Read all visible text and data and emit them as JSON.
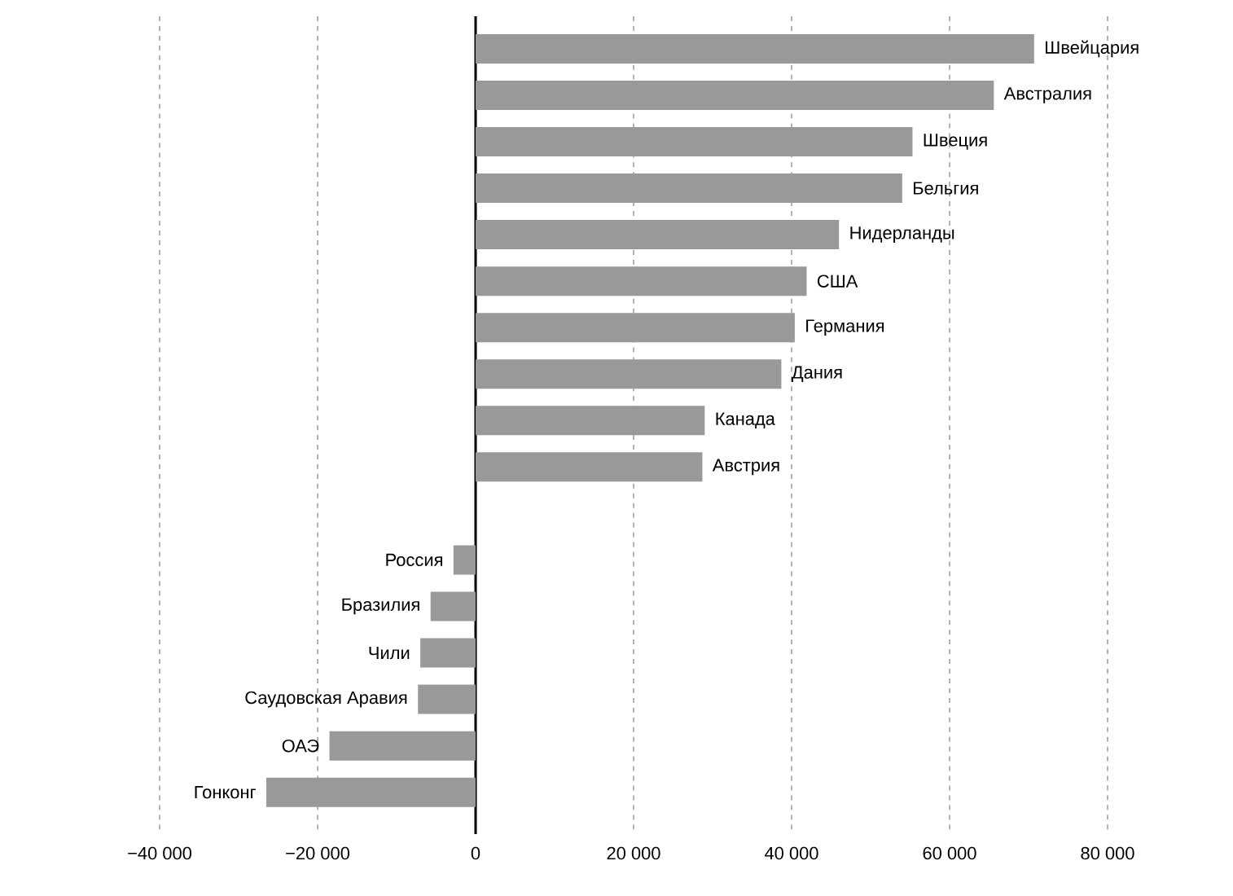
{
  "chart_data": {
    "type": "bar",
    "orientation": "horizontal",
    "categories": [
      "Швейцария",
      "Австралия",
      "Швеция",
      "Бельгия",
      "Нидерланды",
      "США",
      "Германия",
      "Дания",
      "Канада",
      "Австрия",
      null,
      "Россия",
      "Бразилия",
      "Чили",
      "Саудовская Аравия",
      "ОАЭ",
      "Гонконг"
    ],
    "values": [
      70700,
      65600,
      55300,
      54000,
      46000,
      41900,
      40400,
      38700,
      29000,
      28700,
      null,
      -2800,
      -5700,
      -7000,
      -7300,
      -18500,
      -26500
    ],
    "color": "#999999",
    "xlim": [
      -40000,
      80000
    ],
    "xticks": [
      {
        "value": -40000,
        "label": "−40 000"
      },
      {
        "value": -20000,
        "label": "−20 000"
      },
      0,
      {
        "value": 20000,
        "label": "20 000"
      },
      {
        "value": 40000,
        "label": "40 000"
      },
      {
        "value": 60000,
        "label": "60 000"
      },
      {
        "value": 80000,
        "label": "80 000"
      }
    ],
    "grid": "x",
    "ref_lines": [
      {
        "axis": "x",
        "value": 0,
        "color": "#000000"
      }
    ]
  }
}
